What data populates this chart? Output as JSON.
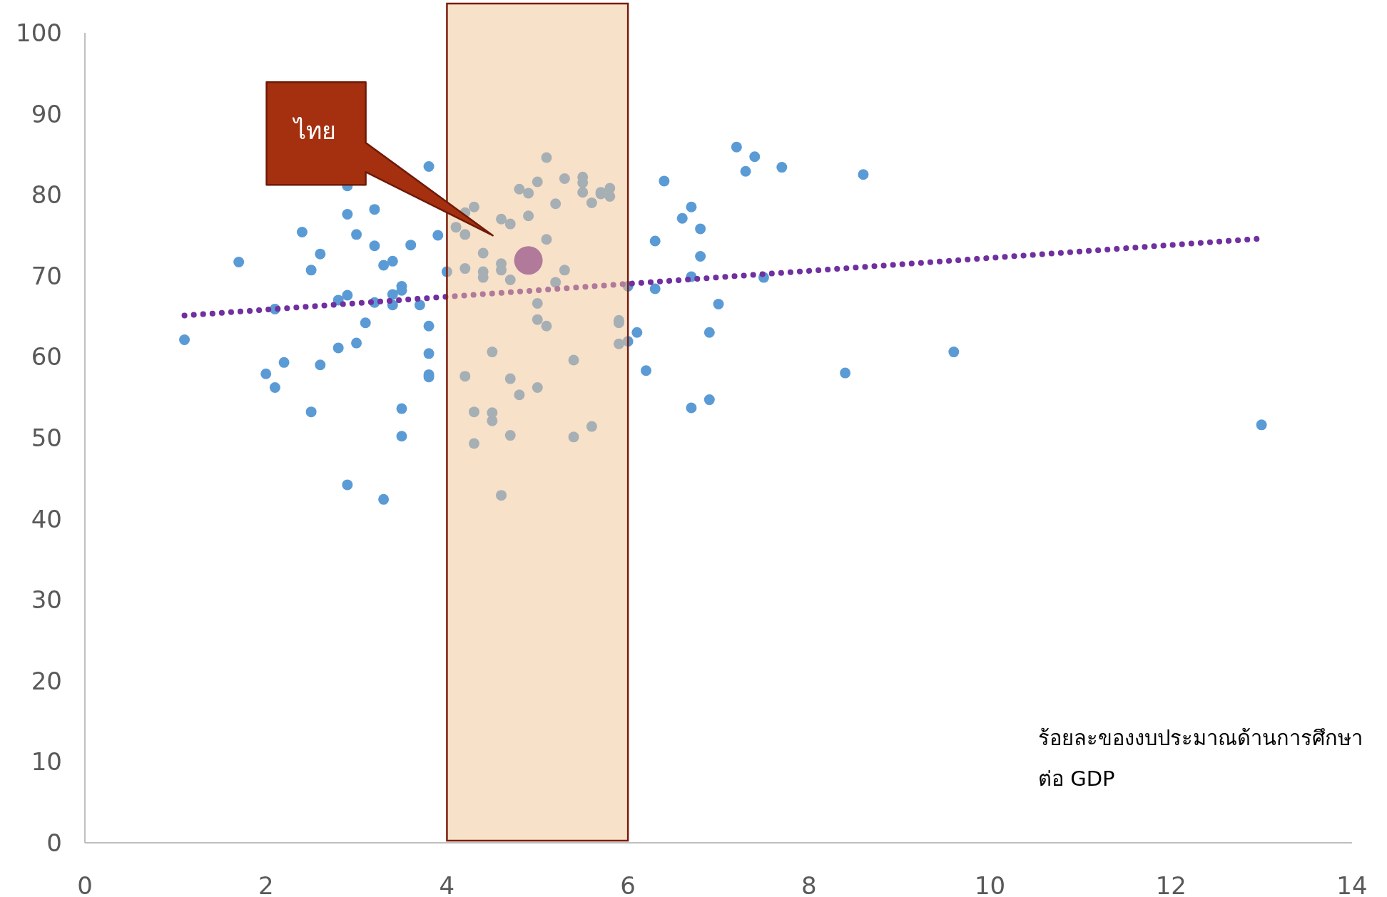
{
  "chart_data": {
    "type": "scatter",
    "xlabel": "ร้อยละของงบประมาณด้านการศึกษา\nต่อ GDP",
    "xlim": [
      0,
      14
    ],
    "xticks": [
      0,
      2,
      4,
      6,
      8,
      10,
      12,
      14
    ],
    "ylim": [
      0,
      100
    ],
    "yticks": [
      0,
      10,
      20,
      30,
      40,
      50,
      60,
      70,
      80,
      90,
      100
    ],
    "grid": false,
    "marker": "circle",
    "bands": [
      {
        "axis": "x",
        "from": 4,
        "to": 6,
        "color": "#f2c394"
      }
    ],
    "annotations": [
      "ไทย"
    ],
    "series": [
      {
        "color": "#5b9bd5",
        "x": [
          1.1,
          1.7,
          2.0,
          2.1,
          2.1,
          2.2,
          2.4,
          2.5,
          2.5,
          2.6,
          2.6,
          2.8,
          2.8,
          2.9,
          2.9,
          2.9,
          2.9,
          3.0,
          3.0,
          3.1,
          3.2,
          3.2,
          3.2,
          3.3,
          3.3,
          3.4,
          3.4,
          3.4,
          3.5,
          3.5,
          3.5,
          3.5,
          3.6,
          3.7,
          3.8,
          3.8,
          3.8,
          3.8,
          3.8,
          3.9,
          4.0,
          4.1,
          4.2,
          4.2,
          4.2,
          4.2,
          4.3,
          4.3,
          4.3,
          4.4,
          4.4,
          4.4,
          4.5,
          4.5,
          4.5,
          4.6,
          4.6,
          4.6,
          4.6,
          4.7,
          4.7,
          4.7,
          4.7,
          4.8,
          4.8,
          4.9,
          4.9,
          5.0,
          5.0,
          5.0,
          5.0,
          5.1,
          5.1,
          5.1,
          5.2,
          5.2,
          5.3,
          5.3,
          5.4,
          5.4,
          5.5,
          5.5,
          5.5,
          5.6,
          5.6,
          5.7,
          5.7,
          5.8,
          5.8,
          5.9,
          5.9,
          5.9,
          6.0,
          6.0,
          6.1,
          6.2,
          6.3,
          6.3,
          6.4,
          6.6,
          6.7,
          6.7,
          6.7,
          6.8,
          6.8,
          6.9,
          6.9,
          7.0,
          7.2,
          7.3,
          7.4,
          7.5,
          7.7,
          8.4,
          8.6,
          9.6,
          13.0
        ],
        "values": [
          62.1,
          71.7,
          57.9,
          65.9,
          56.2,
          59.3,
          75.4,
          70.7,
          53.2,
          72.7,
          59.0,
          67.0,
          61.1,
          81.1,
          77.6,
          67.6,
          44.2,
          75.1,
          61.7,
          64.2,
          78.2,
          73.7,
          66.7,
          71.3,
          42.4,
          71.8,
          67.7,
          66.4,
          68.7,
          68.2,
          53.6,
          50.2,
          73.8,
          66.4,
          83.5,
          63.8,
          60.4,
          57.8,
          57.5,
          75.0,
          70.5,
          76.0,
          77.8,
          75.1,
          70.9,
          57.6,
          78.5,
          53.2,
          49.3,
          72.8,
          70.5,
          69.8,
          60.6,
          53.1,
          52.1,
          77.0,
          71.5,
          70.7,
          42.9,
          76.4,
          69.5,
          57.3,
          50.3,
          80.7,
          55.3,
          80.2,
          77.4,
          81.6,
          66.6,
          64.6,
          56.2,
          84.6,
          74.5,
          63.8,
          78.9,
          69.2,
          82.0,
          70.7,
          59.6,
          50.1,
          82.2,
          81.5,
          80.3,
          79.0,
          51.4,
          80.3,
          80.1,
          80.8,
          79.8,
          64.5,
          64.2,
          61.6,
          68.7,
          61.9,
          63.0,
          58.3,
          74.3,
          68.4,
          81.7,
          77.1,
          78.5,
          69.9,
          53.7,
          75.8,
          72.4,
          63.0,
          54.7,
          66.5,
          85.9,
          82.9,
          84.7,
          69.8,
          83.4,
          58.0,
          82.5,
          60.6,
          51.6
        ]
      },
      {
        "color": "#7030a0",
        "x": [
          4.9
        ],
        "values": [
          71.9
        ]
      },
      {
        "type": "line",
        "color": "#7030a0",
        "line_style": "dotted",
        "marker": "none",
        "x": [
          1.1,
          13.0
        ],
        "values": [
          65.1,
          74.6
        ]
      }
    ]
  }
}
